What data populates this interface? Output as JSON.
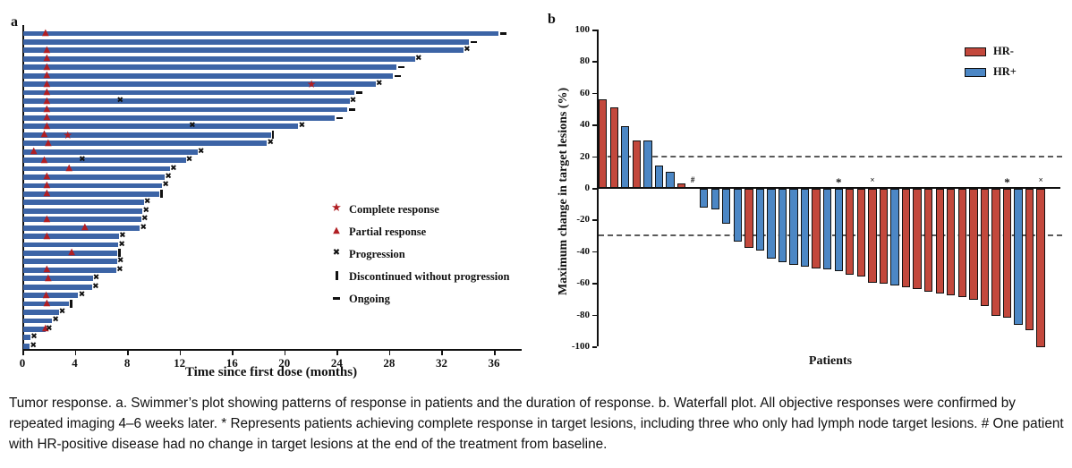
{
  "caption": "Tumor response. a. Swimmer’s plot showing patterns of response in patients and the duration of response. b. Waterfall plot. All objective responses were confirmed by repeated imaging 4–6 weeks later. * Represents patients achieving complete response in target lesions, including three who only had lymph node target lesions. # One patient with HR-positive disease had no change in target lesions at the end of the treatment from baseline.",
  "panel_a": {
    "label": "a",
    "x_axis_title": "Time since first dose (months)",
    "x_ticks": [
      0,
      4,
      8,
      12,
      16,
      20,
      24,
      28,
      32,
      36
    ],
    "bar_color": "#3c64a6",
    "response_color": "#b01e23",
    "event_color": "#111111",
    "legend": [
      {
        "symbol": "star",
        "label": "Complete response"
      },
      {
        "symbol": "triangle",
        "label": "Partial response"
      },
      {
        "symbol": "cross",
        "label": "Progression"
      },
      {
        "symbol": "vbar",
        "label": "Discontinued without progression"
      },
      {
        "symbol": "dash",
        "label": "Ongoing"
      }
    ],
    "chart_data": {
      "type": "swimmer",
      "x_unit": "months",
      "x_range": [
        0,
        38
      ],
      "rows": [
        {
          "len": 36.3,
          "end": "ongoing",
          "pr": [
            1.7
          ]
        },
        {
          "len": 34.0,
          "end": "ongoing"
        },
        {
          "len": 33.6,
          "end": "progression",
          "pr": [
            1.8
          ]
        },
        {
          "len": 29.9,
          "end": "progression",
          "pr": [
            1.8
          ]
        },
        {
          "len": 28.5,
          "end": "ongoing",
          "pr": [
            1.8
          ]
        },
        {
          "len": 28.2,
          "end": "ongoing",
          "pr": [
            1.8
          ]
        },
        {
          "len": 26.9,
          "end": "progression",
          "pr": [
            1.8
          ],
          "cr": [
            22.0
          ]
        },
        {
          "len": 25.3,
          "end": "ongoing",
          "pr": [
            1.8
          ]
        },
        {
          "len": 24.9,
          "end": "progression",
          "pr": [
            1.8
          ],
          "px": [
            7.4
          ]
        },
        {
          "len": 24.7,
          "end": "ongoing",
          "pr": [
            1.8
          ]
        },
        {
          "len": 23.8,
          "end": "ongoing",
          "pr": [
            1.8
          ]
        },
        {
          "len": 21.0,
          "end": "progression",
          "pr": [
            1.8
          ],
          "px": [
            12.9
          ]
        },
        {
          "len": 18.9,
          "end": "discontinued",
          "pr": [
            1.6
          ],
          "cr": [
            3.4
          ]
        },
        {
          "len": 18.6,
          "end": "progression",
          "pr": [
            1.9
          ]
        },
        {
          "len": 13.3,
          "end": "progression",
          "pr": [
            0.8
          ]
        },
        {
          "len": 12.4,
          "end": "progression",
          "pr": [
            1.6
          ],
          "px": [
            4.5
          ]
        },
        {
          "len": 11.2,
          "end": "progression",
          "pr": [
            3.5
          ]
        },
        {
          "len": 10.8,
          "end": "progression",
          "pr": [
            1.8
          ]
        },
        {
          "len": 10.6,
          "end": "progression",
          "pr": [
            1.8
          ]
        },
        {
          "len": 10.4,
          "end": "discontinued",
          "pr": [
            1.8
          ]
        },
        {
          "len": 9.2,
          "end": "progression"
        },
        {
          "len": 9.1,
          "end": "progression"
        },
        {
          "len": 9.0,
          "end": "progression",
          "pr": [
            1.8
          ]
        },
        {
          "len": 8.9,
          "end": "progression",
          "pr": [
            4.7
          ]
        },
        {
          "len": 7.3,
          "end": "progression",
          "pr": [
            1.8
          ]
        },
        {
          "len": 7.25,
          "end": "progression"
        },
        {
          "len": 7.2,
          "end": "discontinued",
          "pr": [
            3.7
          ]
        },
        {
          "len": 7.15,
          "end": "progression"
        },
        {
          "len": 7.1,
          "end": "progression",
          "pr": [
            1.8
          ]
        },
        {
          "len": 5.3,
          "end": "progression",
          "pr": [
            1.9
          ]
        },
        {
          "len": 5.25,
          "end": "progression"
        },
        {
          "len": 4.2,
          "end": "progression",
          "pr": [
            1.75
          ]
        },
        {
          "len": 3.5,
          "end": "discontinued",
          "pr": [
            1.8
          ]
        },
        {
          "len": 2.7,
          "end": "progression"
        },
        {
          "len": 2.2,
          "end": "progression"
        },
        {
          "len": 1.7,
          "end": "progression",
          "pr": [
            1.7
          ]
        },
        {
          "len": 0.55,
          "end": "progression"
        },
        {
          "len": 0.5,
          "end": "progression"
        }
      ]
    }
  },
  "panel_b": {
    "label": "b",
    "y_axis_title": "Maximum change in target lesions (%)",
    "x_axis_title": "Patients",
    "y_ticks": [
      100,
      80,
      60,
      40,
      20,
      0,
      -20,
      -40,
      -60,
      -80,
      -100
    ],
    "reference_lines": [
      20,
      -30
    ],
    "colors": {
      "HR-": "#c3483c",
      "HR+": "#4c87c5"
    },
    "legend": [
      {
        "label": "HR-",
        "color": "#c3483c"
      },
      {
        "label": "HR+",
        "color": "#4c87c5"
      }
    ],
    "chart_data": {
      "type": "waterfall",
      "ylabel": "Maximum change in target lesions (%)",
      "xlabel": "Patients",
      "ylim": [
        -100,
        100
      ],
      "bars": [
        {
          "v": 56,
          "g": "HR-"
        },
        {
          "v": 51,
          "g": "HR-"
        },
        {
          "v": 39,
          "g": "HR+"
        },
        {
          "v": 30,
          "g": "HR-"
        },
        {
          "v": 30,
          "g": "HR+"
        },
        {
          "v": 14,
          "g": "HR+"
        },
        {
          "v": 10,
          "g": "HR+"
        },
        {
          "v": 3,
          "g": "HR-"
        },
        {
          "v": 0,
          "g": "HR+",
          "mark": "#"
        },
        {
          "v": -12,
          "g": "HR+"
        },
        {
          "v": -13,
          "g": "HR+"
        },
        {
          "v": -22,
          "g": "HR+"
        },
        {
          "v": -33,
          "g": "HR+"
        },
        {
          "v": -37,
          "g": "HR-"
        },
        {
          "v": -39,
          "g": "HR+"
        },
        {
          "v": -44,
          "g": "HR+"
        },
        {
          "v": -46,
          "g": "HR+"
        },
        {
          "v": -48,
          "g": "HR+"
        },
        {
          "v": -49,
          "g": "HR+"
        },
        {
          "v": -50,
          "g": "HR-"
        },
        {
          "v": -51,
          "g": "HR+"
        },
        {
          "v": -52,
          "g": "HR+",
          "mark": "*"
        },
        {
          "v": -54,
          "g": "HR-"
        },
        {
          "v": -55,
          "g": "HR-"
        },
        {
          "v": -59,
          "g": "HR-",
          "mark": "×"
        },
        {
          "v": -60,
          "g": "HR-"
        },
        {
          "v": -61,
          "g": "HR+"
        },
        {
          "v": -62,
          "g": "HR-"
        },
        {
          "v": -63,
          "g": "HR-"
        },
        {
          "v": -65,
          "g": "HR-"
        },
        {
          "v": -66,
          "g": "HR-"
        },
        {
          "v": -67,
          "g": "HR-"
        },
        {
          "v": -68,
          "g": "HR-"
        },
        {
          "v": -70,
          "g": "HR-"
        },
        {
          "v": -74,
          "g": "HR-"
        },
        {
          "v": -80,
          "g": "HR-"
        },
        {
          "v": -81,
          "g": "HR-",
          "mark": "*"
        },
        {
          "v": -86,
          "g": "HR+"
        },
        {
          "v": -89,
          "g": "HR-"
        },
        {
          "v": -100,
          "g": "HR-",
          "mark": "×"
        }
      ]
    }
  }
}
